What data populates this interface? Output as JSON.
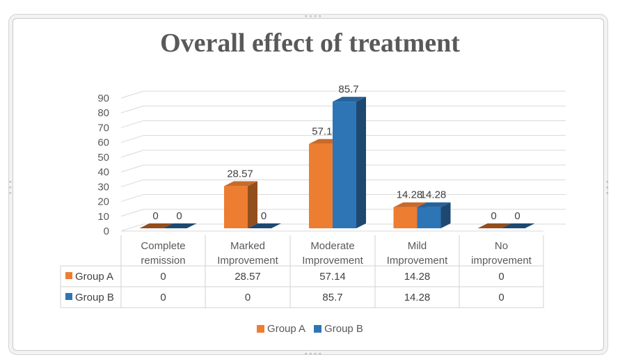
{
  "chart_data": {
    "type": "bar",
    "title": "Overall effect of treatment",
    "categories": [
      [
        "Complete",
        "remission"
      ],
      [
        "Marked",
        "Improvement"
      ],
      [
        "Moderate",
        "Improvement"
      ],
      [
        "Mild",
        "Improvement"
      ],
      [
        "No",
        "improvement"
      ]
    ],
    "series": [
      {
        "name": "Group A",
        "color": "#ED7D31",
        "values": [
          0,
          28.57,
          57.14,
          14.28,
          0
        ],
        "labels": [
          "0",
          "28.57",
          "57.14",
          "14.28",
          "0"
        ]
      },
      {
        "name": "Group B",
        "color": "#2E75B6",
        "values": [
          0,
          0,
          85.7,
          14.28,
          0
        ],
        "labels": [
          "0",
          "0",
          "85.7",
          "14.28",
          "0"
        ]
      }
    ],
    "ylim": [
      0,
      90
    ],
    "yticks": [
      "0",
      "10",
      "20",
      "30",
      "40",
      "50",
      "60",
      "70",
      "80",
      "90"
    ],
    "grid": true,
    "data_table": true,
    "legend_position": "bottom"
  }
}
